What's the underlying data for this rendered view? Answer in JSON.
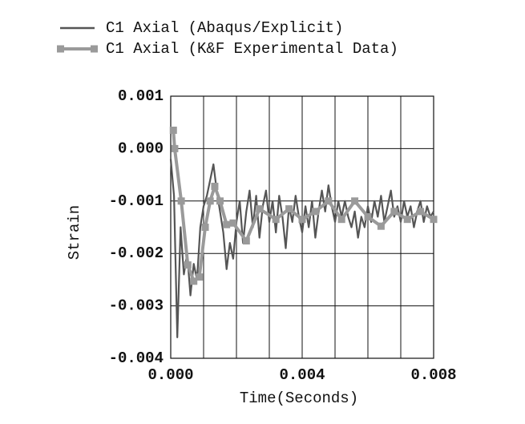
{
  "chart_data": {
    "type": "line",
    "xlabel": "Time(Seconds)",
    "ylabel": "Strain",
    "xlim": [
      0,
      0.008
    ],
    "ylim": [
      -0.004,
      0.001
    ],
    "xticks": [
      {
        "value": 0,
        "label": "0.000"
      },
      0.004,
      0.008
    ],
    "x_minor_ticks": [
      0.001,
      0.002,
      0.003,
      0.005,
      0.006,
      0.007
    ],
    "yticks": [
      0.001,
      {
        "value": 0,
        "label": "0.000"
      },
      -0.001,
      -0.002,
      -0.003,
      -0.004
    ],
    "grid": true,
    "series": [
      {
        "name": "C1 Axial (Abaqus/Explicit)",
        "color": "#555555",
        "marker": "none",
        "x": [
          0,
          0.0001,
          0.0002,
          0.0003,
          0.0004,
          0.0005,
          0.0006,
          0.0007,
          0.0008,
          0.0009,
          0.001,
          0.0011,
          0.0012,
          0.0013,
          0.0014,
          0.0015,
          0.0016,
          0.0017,
          0.0018,
          0.0019,
          0.002,
          0.0021,
          0.0022,
          0.0023,
          0.0024,
          0.0025,
          0.0026,
          0.0027,
          0.0028,
          0.0029,
          0.003,
          0.0031,
          0.0032,
          0.0033,
          0.0034,
          0.0035,
          0.0036,
          0.0037,
          0.0038,
          0.0039,
          0.004,
          0.0041,
          0.0042,
          0.0043,
          0.0044,
          0.0045,
          0.0046,
          0.0047,
          0.0048,
          0.0049,
          0.005,
          0.0051,
          0.0052,
          0.0053,
          0.0054,
          0.0055,
          0.0056,
          0.0057,
          0.0058,
          0.0059,
          0.006,
          0.0061,
          0.0062,
          0.0063,
          0.0064,
          0.0065,
          0.0066,
          0.0067,
          0.0068,
          0.0069,
          0.007,
          0.0071,
          0.0072,
          0.0073,
          0.0074,
          0.0075,
          0.0076,
          0.0077,
          0.0078,
          0.0079,
          0.008
        ],
        "values": [
          -0.0002,
          -0.0009,
          -0.0036,
          -0.0015,
          -0.0024,
          -0.002,
          -0.0028,
          -0.0022,
          -0.0025,
          -0.0015,
          -0.0011,
          -0.0009,
          -0.0006,
          -0.0003,
          -0.0008,
          -0.0012,
          -0.0016,
          -0.0023,
          -0.0018,
          -0.0021,
          -0.0014,
          -0.001,
          -0.0018,
          -0.0012,
          -0.0008,
          -0.0015,
          -0.0009,
          -0.0017,
          -0.0011,
          -0.0008,
          -0.0014,
          -0.001,
          -0.0016,
          -0.0009,
          -0.0013,
          -0.0019,
          -0.0011,
          -0.0014,
          -0.0009,
          -0.0013,
          -0.0016,
          -0.0011,
          -0.0015,
          -0.001,
          -0.0017,
          -0.0012,
          -0.0008,
          -0.0012,
          -0.0007,
          -0.0011,
          -0.0014,
          -0.001,
          -0.0013,
          -0.001,
          -0.0013,
          -0.0015,
          -0.0012,
          -0.0017,
          -0.0013,
          -0.0015,
          -0.0011,
          -0.0014,
          -0.001,
          -0.0013,
          -0.0009,
          -0.0014,
          -0.0011,
          -0.0008,
          -0.0013,
          -0.0011,
          -0.0014,
          -0.001,
          -0.0013,
          -0.0011,
          -0.0015,
          -0.0012,
          -0.001,
          -0.0014,
          -0.0011,
          -0.0013,
          -0.0012
        ]
      },
      {
        "name": "C1 Axial (K&F Experimental Data)",
        "color": "#9a9a9a",
        "marker": "square",
        "x": [
          8e-05,
          0.00012,
          0.00032,
          0.00052,
          0.0007,
          0.00087,
          0.00105,
          0.0012,
          0.00134,
          0.0015,
          0.0017,
          0.0019,
          0.0023,
          0.0027,
          0.0032,
          0.0036,
          0.004,
          0.0044,
          0.0048,
          0.0052,
          0.0056,
          0.006,
          0.0064,
          0.0068,
          0.0072,
          0.0076,
          0.008
        ],
        "values": [
          0.00035,
          0,
          -0.001,
          -0.00222,
          -0.00253,
          -0.00245,
          -0.0015,
          -0.001,
          -0.00072,
          -0.001,
          -0.00145,
          -0.00142,
          -0.00176,
          -0.00115,
          -0.00135,
          -0.00115,
          -0.00135,
          -0.0012,
          -0.001,
          -0.00135,
          -0.001,
          -0.0013,
          -0.00148,
          -0.0012,
          -0.00135,
          -0.0012,
          -0.00135
        ]
      }
    ]
  }
}
